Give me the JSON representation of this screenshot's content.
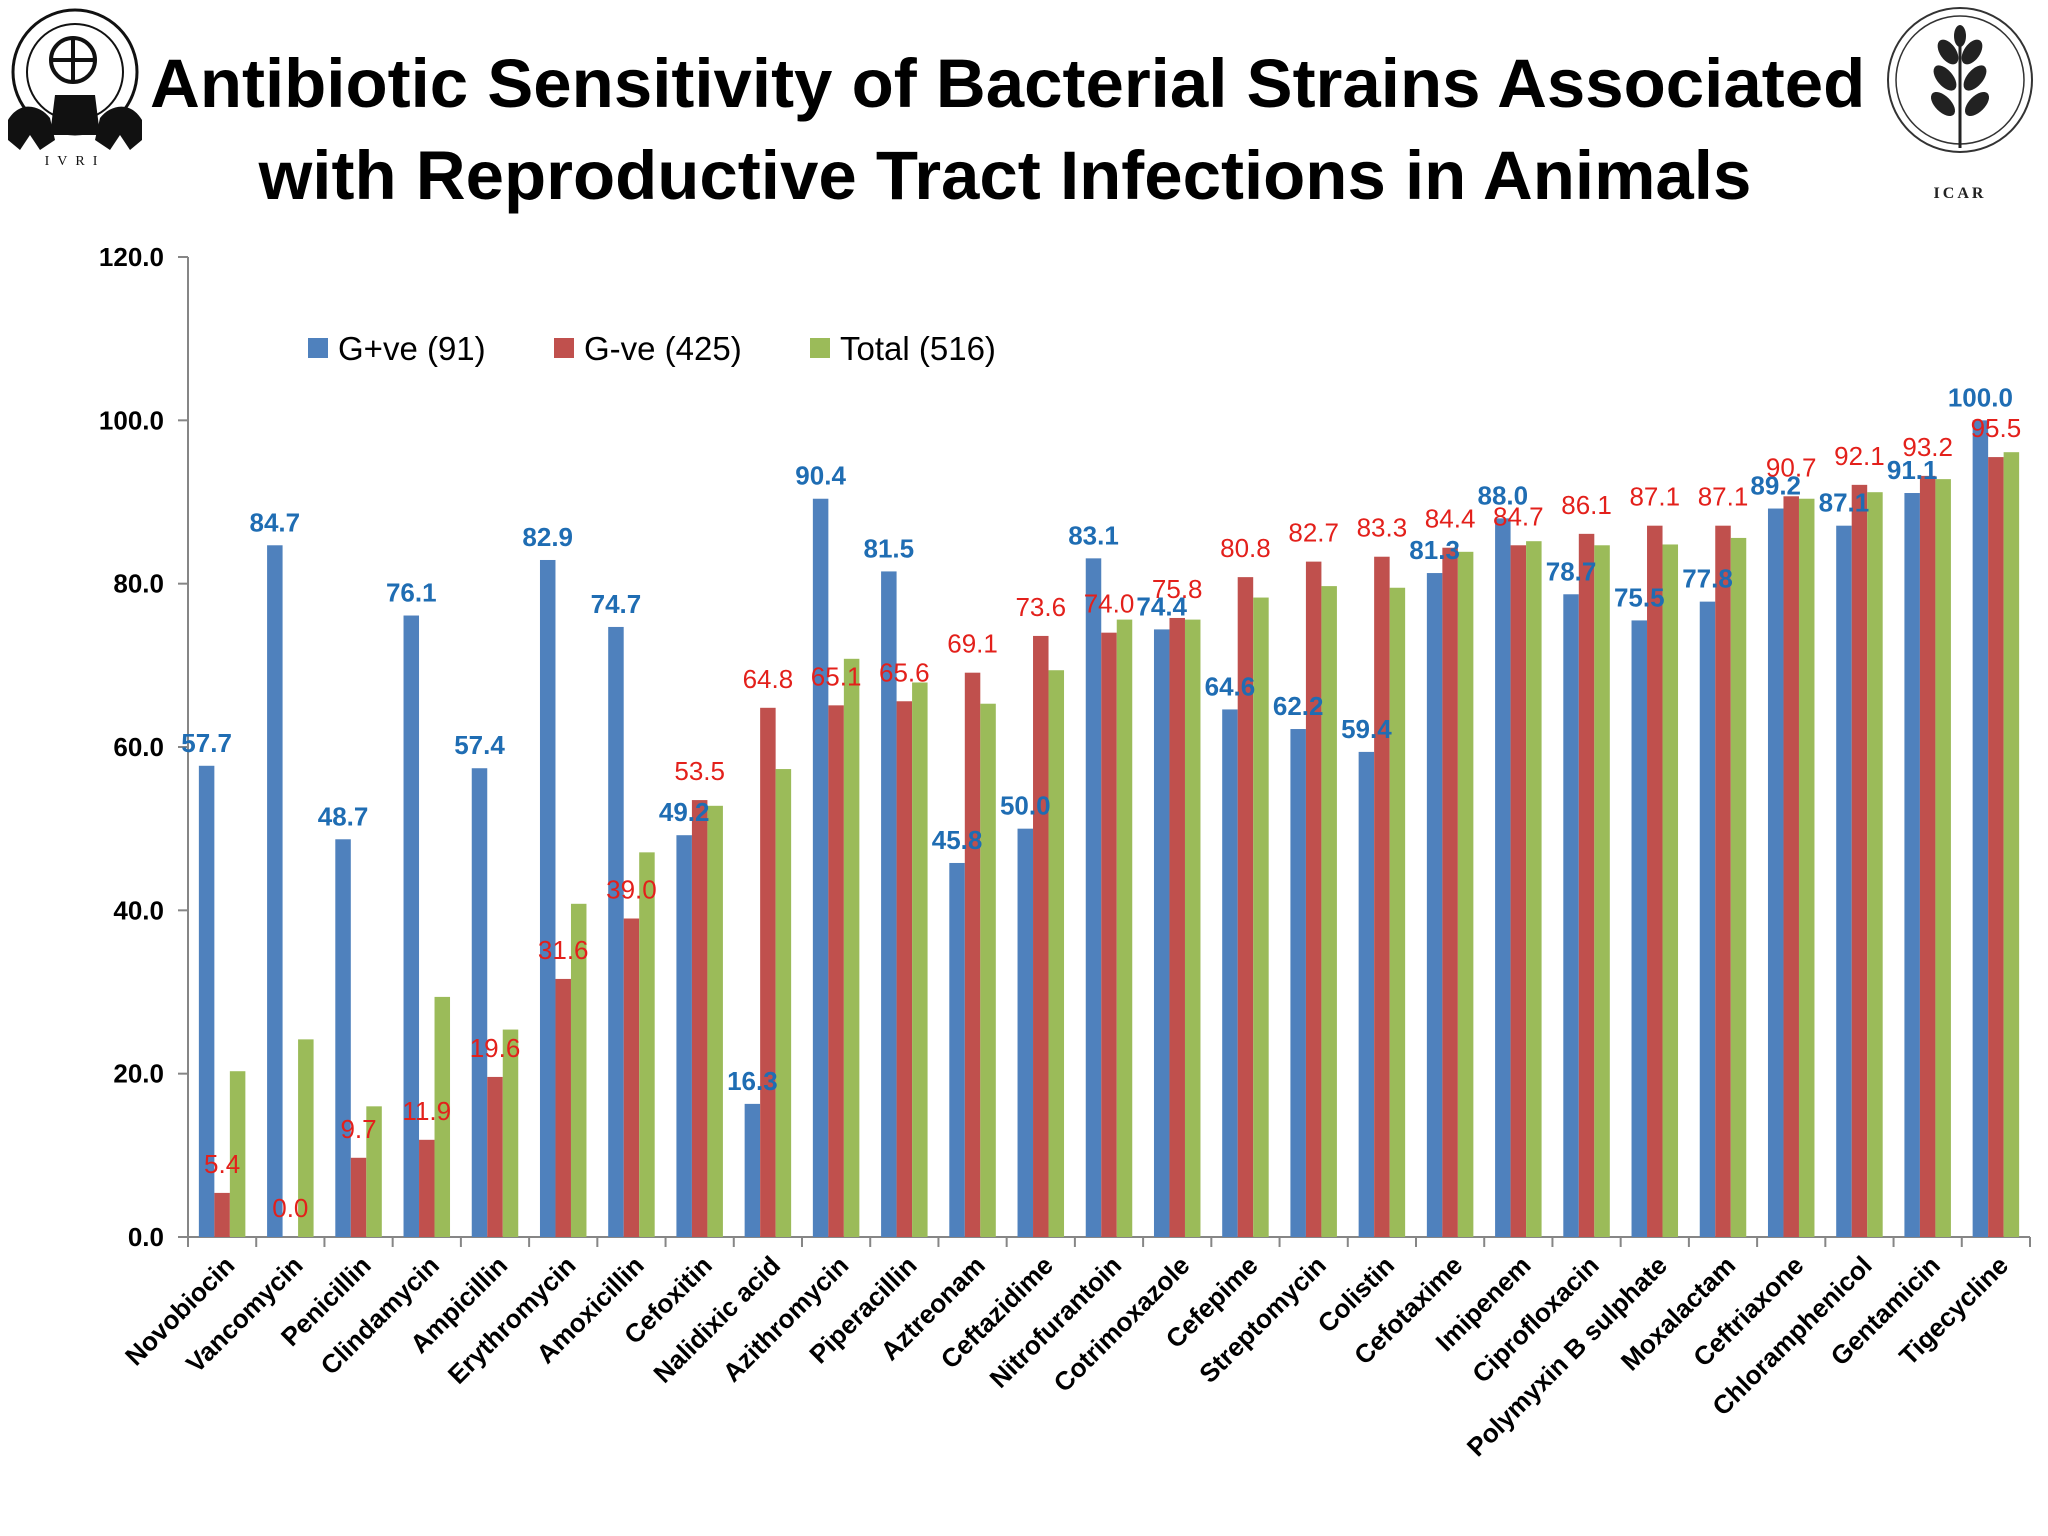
{
  "header": {
    "title_line1": "Antibiotic Sensitivity of Bacterial Strains Associated",
    "title_line2": "with Reproductive Tract Infections in Animals",
    "left_logo_text": "IVRI",
    "right_logo_text": "ICAR"
  },
  "colors": {
    "gpos": "#4f81bd",
    "gneg": "#c0504d",
    "total": "#9bbb59",
    "gpos_label": "#1f6db3",
    "gneg_label": "#e3201b"
  },
  "chart_data": {
    "type": "bar",
    "title": "Antibiotic Sensitivity of Bacterial Strains Associated with Reproductive Tract Infections in Animals",
    "xlabel": "",
    "ylabel": "",
    "ylim": [
      0,
      120
    ],
    "yticks": [
      "0.0",
      "20.0",
      "40.0",
      "60.0",
      "80.0",
      "100.0",
      "120.0"
    ],
    "grid": false,
    "legend_position": "top-left",
    "categories": [
      "Novobiocin",
      "Vancomycin",
      "Penicillin",
      "Clindamycin",
      "Ampicillin",
      "Erythromycin",
      "Amoxicillin",
      "Cefoxitin",
      "Nalidixic acid",
      "Azithromycin",
      "Piperacillin",
      "Aztreonam",
      "Ceftazidime",
      "Nitrofurantoin",
      "Cotrimoxazole",
      "Cefepime",
      "Streptomycin",
      "Colistin",
      "Cefotaxime",
      "Imipenem",
      "Ciprofloxacin",
      "Polymyxin B sulphate",
      "Moxalactam",
      "Ceftriaxone",
      "Chloramphenicol",
      "Gentamicin",
      "Tigecycline"
    ],
    "series": [
      {
        "name": "G+ve (91)",
        "values": [
          57.7,
          84.7,
          48.7,
          76.1,
          57.4,
          82.9,
          74.7,
          49.2,
          16.3,
          90.4,
          81.5,
          45.8,
          50.0,
          83.1,
          74.4,
          64.6,
          62.2,
          59.4,
          81.3,
          88.0,
          78.7,
          75.5,
          77.8,
          89.2,
          87.1,
          91.1,
          100.0
        ],
        "labels": [
          "57.7",
          "84.7",
          "48.7",
          "76.1",
          "57.4",
          "82.9",
          "74.7",
          "49.2",
          "16.3",
          "90.4",
          "81.5",
          "45.8",
          "50.0",
          "83.1",
          "74.4",
          "64.6",
          "62.2",
          "59.4",
          "81.3",
          "88.0",
          "78.7",
          "75.5",
          "77.8",
          "89.2",
          "87.1",
          "91.1",
          "100.0"
        ]
      },
      {
        "name": "G-ve (425)",
        "values": [
          5.4,
          0.0,
          9.7,
          11.9,
          19.6,
          31.6,
          39.0,
          53.5,
          64.8,
          65.1,
          65.6,
          69.1,
          73.6,
          74.0,
          75.8,
          80.8,
          82.7,
          83.3,
          84.4,
          84.7,
          86.1,
          87.1,
          87.1,
          90.7,
          92.1,
          93.2,
          95.5
        ],
        "labels": [
          "5.4",
          "0.0",
          "9.7",
          "11.9",
          "19.6",
          "31.6",
          "39.0",
          "53.5",
          "64.8",
          "65.1",
          "65.6",
          "69.1",
          "73.6",
          "74.0",
          "75.8",
          "80.8",
          "82.7",
          "83.3",
          "84.4",
          "84.7",
          "86.1",
          "87.1",
          "87.1",
          "90.7",
          "92.1",
          "93.2",
          "95.5"
        ]
      },
      {
        "name": "Total (516)",
        "values": [
          20.3,
          24.2,
          16.0,
          29.4,
          25.4,
          40.8,
          47.1,
          52.8,
          57.3,
          70.8,
          67.9,
          65.3,
          69.4,
          75.6,
          75.6,
          78.3,
          79.7,
          79.5,
          83.9,
          85.2,
          84.7,
          84.8,
          85.6,
          90.4,
          91.2,
          92.8,
          96.1
        ]
      }
    ]
  }
}
